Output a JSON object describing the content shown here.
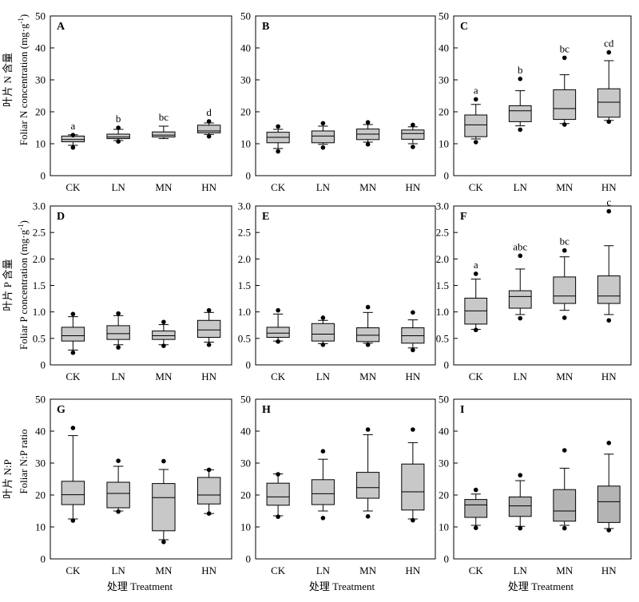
{
  "figure": {
    "row_ylabels": [
      {
        "cn": "叶片 N 含量",
        "en": "Foliar N concentration (mg·g",
        "sup": "-1",
        "close": ")"
      },
      {
        "cn": "叶片 P 含量",
        "en": "Foliar P concentration (mg·g",
        "sup": "-1",
        "close": ")"
      },
      {
        "cn": "叶片 N:P",
        "en": "Foliar N:P ratio",
        "sup": "",
        "close": ""
      }
    ],
    "xlabel": "处理  Treatment"
  },
  "colors": {
    "box_fill": "#c8c8c8",
    "box_fill_dark": "#b4b4b4",
    "line": "#000000"
  },
  "chart_data": [
    {
      "panel": "A",
      "type": "box",
      "categories": [
        "CK",
        "LN",
        "MN",
        "HN"
      ],
      "ylim": [
        0,
        50
      ],
      "yticks": [
        0,
        10,
        20,
        30,
        40,
        50
      ],
      "boxes": [
        {
          "whisker_low": 9.5,
          "q1": 10.6,
          "median": 11.3,
          "q3": 12.4,
          "whisker_high": 12.8,
          "outliers": [
            8.8,
            12.7
          ]
        },
        {
          "whisker_low": 11.0,
          "q1": 11.6,
          "median": 12.1,
          "q3": 13.0,
          "whisker_high": 14.5,
          "outliers": [
            10.7,
            15.0
          ]
        },
        {
          "whisker_low": 11.6,
          "q1": 12.1,
          "median": 12.7,
          "q3": 13.7,
          "whisker_high": 15.5,
          "outliers": []
        },
        {
          "whisker_low": 12.9,
          "q1": 13.4,
          "median": 14.0,
          "q3": 15.8,
          "whisker_high": 16.5,
          "outliers": [
            12.3,
            17.0
          ]
        }
      ],
      "letters": [
        "a",
        "b",
        "bc",
        "d"
      ]
    },
    {
      "panel": "B",
      "type": "box",
      "categories": [
        "CK",
        "LN",
        "MN",
        "HN"
      ],
      "ylim": [
        0,
        50
      ],
      "yticks": [
        0,
        10,
        20,
        30,
        40,
        50
      ],
      "boxes": [
        {
          "whisker_low": 8.5,
          "q1": 10.3,
          "median": 12.0,
          "q3": 13.6,
          "whisker_high": 14.5,
          "outliers": [
            7.6,
            15.4
          ]
        },
        {
          "whisker_low": 9.8,
          "q1": 10.3,
          "median": 12.4,
          "q3": 14.0,
          "whisker_high": 15.5,
          "outliers": [
            8.8,
            16.4
          ]
        },
        {
          "whisker_low": 10.5,
          "q1": 11.3,
          "median": 13.0,
          "q3": 14.6,
          "whisker_high": 16.0,
          "outliers": [
            9.8,
            16.7
          ]
        },
        {
          "whisker_low": 10.0,
          "q1": 11.4,
          "median": 13.2,
          "q3": 14.3,
          "whisker_high": 15.3,
          "outliers": [
            9.0,
            15.9
          ]
        }
      ],
      "letters": [
        "",
        "",
        "",
        ""
      ]
    },
    {
      "panel": "C",
      "type": "box",
      "categories": [
        "CK",
        "LN",
        "MN",
        "HN"
      ],
      "ylim": [
        0,
        50
      ],
      "yticks": [
        0,
        10,
        20,
        30,
        40,
        50
      ],
      "boxes": [
        {
          "whisker_low": 11.5,
          "q1": 12.2,
          "median": 15.9,
          "q3": 19.0,
          "whisker_high": 22.3,
          "outliers": [
            10.5,
            23.9
          ]
        },
        {
          "whisker_low": 15.6,
          "q1": 16.9,
          "median": 20.3,
          "q3": 21.9,
          "whisker_high": 26.6,
          "outliers": [
            14.4,
            30.3
          ]
        },
        {
          "whisker_low": 16.3,
          "q1": 17.6,
          "median": 21.0,
          "q3": 26.9,
          "whisker_high": 31.6,
          "outliers": [
            16.0,
            36.9
          ]
        },
        {
          "whisker_low": 17.3,
          "q1": 18.3,
          "median": 23.0,
          "q3": 27.2,
          "whisker_high": 36.0,
          "outliers": [
            16.9,
            38.6
          ]
        }
      ],
      "letters": [
        "a",
        "b",
        "bc",
        "cd"
      ]
    },
    {
      "panel": "D",
      "type": "box",
      "categories": [
        "CK",
        "LN",
        "MN",
        "HN"
      ],
      "ylim": [
        0,
        3
      ],
      "yticks": [
        0,
        0.5,
        1.0,
        1.5,
        2.0,
        2.5,
        3.0
      ],
      "boxes": [
        {
          "whisker_low": 0.28,
          "q1": 0.45,
          "median": 0.55,
          "q3": 0.71,
          "whisker_high": 0.91,
          "outliers": [
            0.23,
            0.96
          ]
        },
        {
          "whisker_low": 0.38,
          "q1": 0.48,
          "median": 0.59,
          "q3": 0.74,
          "whisker_high": 0.93,
          "outliers": [
            0.33,
            0.97
          ]
        },
        {
          "whisker_low": 0.38,
          "q1": 0.48,
          "median": 0.55,
          "q3": 0.64,
          "whisker_high": 0.76,
          "outliers": [
            0.36,
            0.81
          ]
        },
        {
          "whisker_low": 0.43,
          "q1": 0.52,
          "median": 0.66,
          "q3": 0.84,
          "whisker_high": 0.99,
          "outliers": [
            0.38,
            1.03
          ]
        }
      ],
      "letters": [
        "",
        "",
        "",
        ""
      ]
    },
    {
      "panel": "E",
      "type": "box",
      "categories": [
        "CK",
        "LN",
        "MN",
        "HN"
      ],
      "ylim": [
        0,
        3
      ],
      "yticks": [
        0,
        0.5,
        1.0,
        1.5,
        2.0,
        2.5,
        3.0
      ],
      "boxes": [
        {
          "whisker_low": 0.45,
          "q1": 0.52,
          "median": 0.6,
          "q3": 0.71,
          "whisker_high": 0.96,
          "outliers": [
            0.44,
            1.03
          ]
        },
        {
          "whisker_low": 0.4,
          "q1": 0.45,
          "median": 0.58,
          "q3": 0.78,
          "whisker_high": 0.84,
          "outliers": [
            0.38,
            0.89
          ]
        },
        {
          "whisker_low": 0.41,
          "q1": 0.44,
          "median": 0.56,
          "q3": 0.7,
          "whisker_high": 0.99,
          "outliers": [
            0.38,
            1.09
          ]
        },
        {
          "whisker_low": 0.32,
          "q1": 0.41,
          "median": 0.55,
          "q3": 0.7,
          "whisker_high": 0.85,
          "outliers": [
            0.28,
            0.99
          ]
        }
      ],
      "letters": [
        "",
        "",
        "",
        ""
      ]
    },
    {
      "panel": "F",
      "type": "box",
      "categories": [
        "CK",
        "LN",
        "MN",
        "HN"
      ],
      "ylim": [
        0,
        3
      ],
      "yticks": [
        0,
        0.5,
        1.0,
        1.5,
        2.0,
        2.5,
        3.0
      ],
      "boxes": [
        {
          "whisker_low": 0.67,
          "q1": 0.77,
          "median": 1.02,
          "q3": 1.26,
          "whisker_high": 1.62,
          "outliers": [
            0.66,
            1.72
          ]
        },
        {
          "whisker_low": 0.95,
          "q1": 1.07,
          "median": 1.29,
          "q3": 1.4,
          "whisker_high": 1.81,
          "outliers": [
            0.88,
            2.06
          ]
        },
        {
          "whisker_low": 1.03,
          "q1": 1.16,
          "median": 1.3,
          "q3": 1.66,
          "whisker_high": 2.04,
          "outliers": [
            0.89,
            2.16
          ]
        },
        {
          "whisker_low": 0.95,
          "q1": 1.16,
          "median": 1.3,
          "q3": 1.68,
          "whisker_high": 2.25,
          "outliers": [
            0.84,
            2.9
          ]
        }
      ],
      "letters": [
        "a",
        "abc",
        "bc",
        "c"
      ]
    },
    {
      "panel": "G",
      "type": "box",
      "categories": [
        "CK",
        "LN",
        "MN",
        "HN"
      ],
      "ylim": [
        0,
        50
      ],
      "yticks": [
        0,
        10,
        20,
        30,
        40,
        50
      ],
      "boxes": [
        {
          "whisker_low": 12.5,
          "q1": 17.0,
          "median": 20.1,
          "q3": 24.3,
          "whisker_high": 38.6,
          "outliers": [
            12.0,
            41.0
          ]
        },
        {
          "whisker_low": 15.0,
          "q1": 16.0,
          "median": 20.5,
          "q3": 24.0,
          "whisker_high": 29.0,
          "outliers": [
            14.8,
            30.7
          ]
        },
        {
          "whisker_low": 6.0,
          "q1": 8.8,
          "median": 19.2,
          "q3": 23.6,
          "whisker_high": 28.0,
          "outliers": [
            5.3,
            30.6
          ]
        },
        {
          "whisker_low": 14.2,
          "q1": 17.2,
          "median": 20.0,
          "q3": 25.5,
          "whisker_high": 27.9,
          "outliers": [
            14.2,
            27.9
          ]
        }
      ],
      "letters": [
        "",
        "",
        "",
        ""
      ]
    },
    {
      "panel": "H",
      "type": "box",
      "categories": [
        "CK",
        "LN",
        "MN",
        "HN"
      ],
      "ylim": [
        0,
        50
      ],
      "yticks": [
        0,
        10,
        20,
        30,
        40,
        50
      ],
      "boxes": [
        {
          "whisker_low": 13.5,
          "q1": 16.8,
          "median": 19.4,
          "q3": 23.7,
          "whisker_high": 26.6,
          "outliers": [
            13.2,
            26.5
          ]
        },
        {
          "whisker_low": 15.0,
          "q1": 17.0,
          "median": 20.4,
          "q3": 24.8,
          "whisker_high": 31.2,
          "outliers": [
            12.8,
            33.7
          ]
        },
        {
          "whisker_low": 15.0,
          "q1": 19.0,
          "median": 22.3,
          "q3": 27.1,
          "whisker_high": 38.9,
          "outliers": [
            13.3,
            40.5
          ]
        },
        {
          "whisker_low": 12.5,
          "q1": 15.3,
          "median": 21.0,
          "q3": 29.7,
          "whisker_high": 36.4,
          "outliers": [
            12.1,
            40.5
          ]
        }
      ],
      "letters": [
        "",
        "",
        "",
        ""
      ]
    },
    {
      "panel": "I",
      "type": "box",
      "categories": [
        "CK",
        "LN",
        "MN",
        "HN"
      ],
      "ylim": [
        0,
        50
      ],
      "yticks": [
        0,
        10,
        20,
        30,
        40,
        50
      ],
      "boxes": [
        {
          "whisker_low": 10.5,
          "q1": 13.0,
          "median": 16.9,
          "q3": 18.6,
          "whisker_high": 20.3,
          "outliers": [
            9.7,
            21.6
          ]
        },
        {
          "whisker_low": 10.2,
          "q1": 13.3,
          "median": 16.6,
          "q3": 19.4,
          "whisker_high": 24.5,
          "outliers": [
            9.6,
            26.2
          ]
        },
        {
          "whisker_low": 10.5,
          "q1": 11.8,
          "median": 15.0,
          "q3": 21.7,
          "whisker_high": 28.4,
          "outliers": [
            9.6,
            34.0
          ]
        },
        {
          "whisker_low": 9.5,
          "q1": 11.4,
          "median": 17.9,
          "q3": 22.8,
          "whisker_high": 32.8,
          "outliers": [
            9.0,
            36.3
          ]
        }
      ],
      "letters": [
        "",
        "",
        "",
        ""
      ]
    }
  ]
}
